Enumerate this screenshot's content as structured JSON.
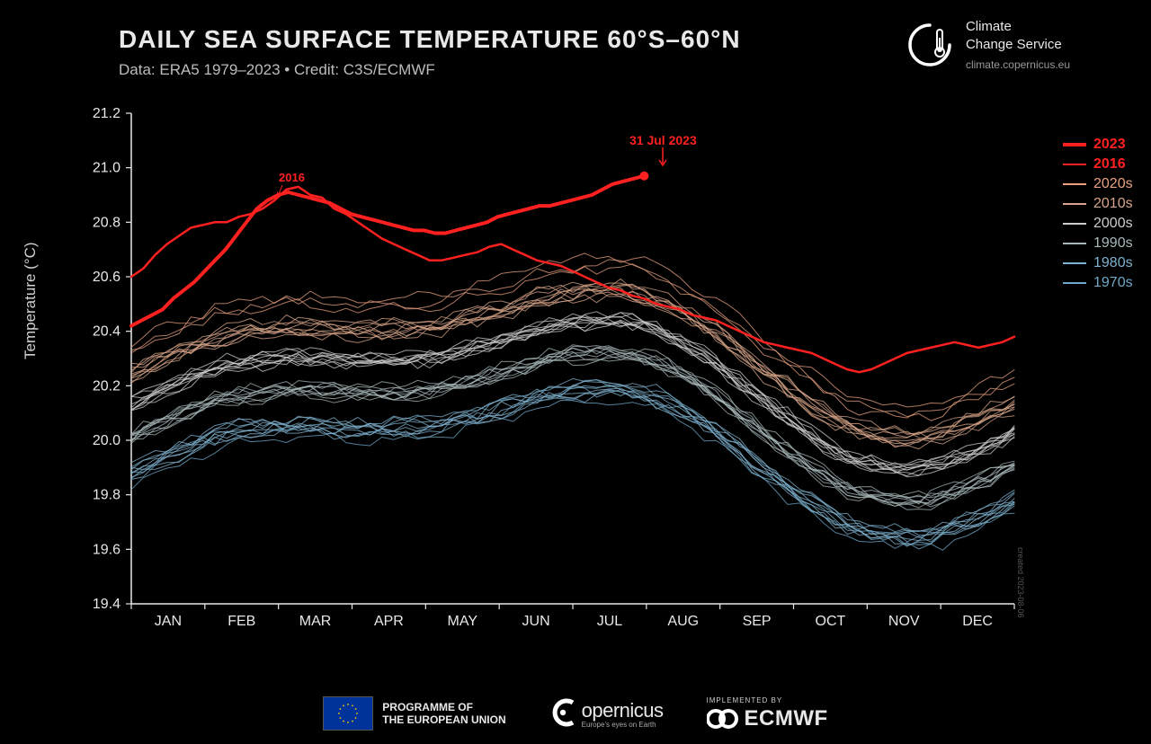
{
  "header": {
    "title": "DAILY SEA SURFACE TEMPERATURE 60°S–60°N",
    "subtitle": "Data: ERA5 1979–2023  •  Credit: C3S/ECMWF"
  },
  "logo": {
    "line1": "Climate",
    "line2": "Change Service",
    "url": "climate.copernicus.eu"
  },
  "chart": {
    "type": "line",
    "background_color": "#000000",
    "axis_color": "#e8e8e8",
    "tick_color": "#e8e8e8",
    "tick_fontsize": 16,
    "ylabel": "Temperature (°C)",
    "ylim": [
      19.4,
      21.2
    ],
    "yticks": [
      19.4,
      19.6,
      19.8,
      20.0,
      20.2,
      20.4,
      20.6,
      20.8,
      21.0,
      21.2
    ],
    "xcategories": [
      "JAN",
      "FEB",
      "MAR",
      "APR",
      "MAY",
      "JUN",
      "JUL",
      "AUG",
      "SEP",
      "OCT",
      "NOV",
      "DEC"
    ],
    "annotations": {
      "date_label": "31 Jul 2023",
      "year_label": "2016"
    },
    "decades": [
      {
        "label": "1970s",
        "color": "#6fa8c9",
        "width": 1,
        "years": 1,
        "base_offset": -0.34
      },
      {
        "label": "1980s",
        "color": "#7fb2cf",
        "width": 1,
        "years": 10,
        "base_offset": -0.3
      },
      {
        "label": "1990s",
        "color": "#a8b8b8",
        "width": 1,
        "years": 10,
        "base_offset": -0.18
      },
      {
        "label": "2000s",
        "color": "#cccccc",
        "width": 1,
        "years": 10,
        "base_offset": -0.06
      },
      {
        "label": "2010s",
        "color": "#d8a58a",
        "width": 1,
        "years": 10,
        "base_offset": 0.06
      },
      {
        "label": "2020s",
        "color": "#e8a080",
        "width": 1,
        "years": 3,
        "base_offset": 0.16
      }
    ],
    "highlight_2016": {
      "color": "#ff2020",
      "width": 2.5
    },
    "highlight_2023": {
      "color": "#ff2020",
      "width": 4
    },
    "legend_items": [
      {
        "label": "2023",
        "color": "#ff2020",
        "width": 4,
        "weight": "700"
      },
      {
        "label": "2016",
        "color": "#ff2020",
        "width": 2.5,
        "weight": "700"
      },
      {
        "label": "2020s",
        "color": "#e8a080",
        "width": 1.5,
        "weight": "400"
      },
      {
        "label": "2010s",
        "color": "#d8a58a",
        "width": 1.5,
        "weight": "400"
      },
      {
        "label": "2000s",
        "color": "#cccccc",
        "width": 1.5,
        "weight": "400"
      },
      {
        "label": "1990s",
        "color": "#a8b8b8",
        "width": 1.5,
        "weight": "400"
      },
      {
        "label": "1980s",
        "color": "#7fb2cf",
        "width": 1.5,
        "weight": "400"
      },
      {
        "label": "1970s",
        "color": "#6fa8c9",
        "width": 1.5,
        "weight": "400"
      }
    ],
    "series_2016": [
      20.6,
      20.63,
      20.68,
      20.72,
      20.75,
      20.78,
      20.79,
      20.8,
      20.8,
      20.82,
      20.83,
      20.85,
      20.88,
      20.92,
      20.93,
      20.9,
      20.89,
      20.85,
      20.83,
      20.8,
      20.77,
      20.74,
      20.72,
      20.7,
      20.68,
      20.66,
      20.66,
      20.67,
      20.68,
      20.69,
      20.71,
      20.72,
      20.7,
      20.68,
      20.66,
      20.65,
      20.64,
      20.62,
      20.6,
      20.58,
      20.56,
      20.55,
      20.53,
      20.52,
      20.5,
      20.49,
      20.48,
      20.46,
      20.45,
      20.44,
      20.42,
      20.4,
      20.38,
      20.36,
      20.35,
      20.34,
      20.33,
      20.32,
      20.3,
      20.28,
      20.26,
      20.25,
      20.26,
      20.28,
      20.3,
      20.32,
      20.33,
      20.34,
      20.35,
      20.36,
      20.35,
      20.34,
      20.35,
      20.36,
      20.38
    ],
    "series_2023": [
      20.42,
      20.44,
      20.46,
      20.48,
      20.52,
      20.55,
      20.58,
      20.62,
      20.66,
      20.7,
      20.75,
      20.8,
      20.85,
      20.88,
      20.9,
      20.91,
      20.9,
      20.89,
      20.88,
      20.87,
      20.85,
      20.83,
      20.82,
      20.81,
      20.8,
      20.79,
      20.78,
      20.77,
      20.77,
      20.76,
      20.76,
      20.77,
      20.78,
      20.79,
      20.8,
      20.82,
      20.83,
      20.84,
      20.85,
      20.86,
      20.86,
      20.87,
      20.88,
      20.89,
      20.9,
      20.92,
      20.94,
      20.95,
      20.96,
      20.97
    ]
  },
  "footer": {
    "eu_line1": "PROGRAMME OF",
    "eu_line2": "THE EUROPEAN UNION",
    "copernicus": "opernicus",
    "copernicus_sub": "Europe's eyes on Earth",
    "ecmwf_impl": "IMPLEMENTED BY",
    "ecmwf": "ECMWF"
  },
  "created": "created 2023-08-06"
}
